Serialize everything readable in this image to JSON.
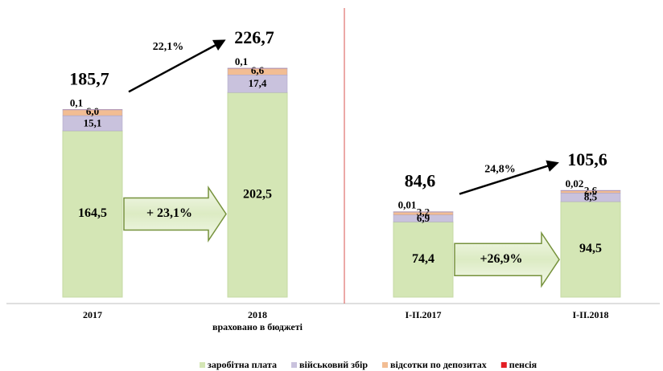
{
  "chart_data": {
    "type": "bar",
    "stacked": true,
    "categories": [
      "2017",
      "2018",
      "I-II.2017",
      "I-II.2018"
    ],
    "category_notes": [
      null,
      "враховано в бюджеті",
      null,
      null
    ],
    "series": [
      {
        "name": "заробітна плата",
        "color": "#d4e6b5",
        "values": [
          164.5,
          202.5,
          74.4,
          94.5
        ],
        "value_labels": [
          "164,5",
          "202,5",
          "74,4",
          "94,5"
        ]
      },
      {
        "name": "військовий збір",
        "color": "#c9c2dd",
        "values": [
          15.1,
          17.4,
          6.9,
          8.5
        ],
        "value_labels": [
          "15,1",
          "17,4",
          "6,9",
          "8,5"
        ]
      },
      {
        "name": "відсотки по депозитах",
        "color": "#f2bd93",
        "values": [
          6.0,
          6.6,
          3.2,
          2.6
        ],
        "value_labels": [
          "6,0",
          "6,6",
          "3,2",
          "2,6"
        ]
      },
      {
        "name": "пенсія",
        "color": "#e31e24",
        "values": [
          0.1,
          0.1,
          0.01,
          0.02
        ],
        "value_labels": [
          "0,1",
          "0,1",
          "0,01",
          "0,02"
        ]
      }
    ],
    "totals": {
      "values": [
        185.7,
        226.7,
        84.6,
        105.6
      ],
      "value_labels": [
        "185,7",
        "226,7",
        "84,6",
        "105,6"
      ]
    },
    "total_growth": {
      "values": [
        22.1,
        24.8
      ],
      "value_labels": [
        "22,1%",
        "24,8%"
      ]
    },
    "wage_growth": {
      "values": [
        23.1,
        26.9
      ],
      "value_labels": [
        "+ 23,1%",
        "+26,9%"
      ]
    },
    "ylim": [
      0,
      240
    ],
    "legend": "bottom"
  }
}
